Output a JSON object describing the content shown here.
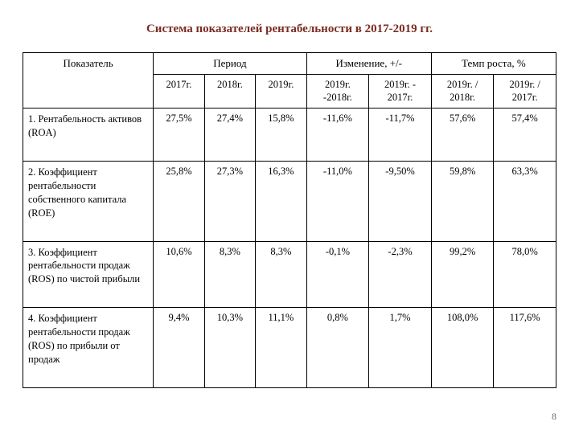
{
  "title": "Система показателей рентабельности в 2017-2019 гг.",
  "columns": {
    "indicator": "Показатель",
    "period": "Период",
    "change": "Изменение, +/-",
    "growth": "Темп роста, %",
    "y2017": "2017г.",
    "y2018": "2018г.",
    "y2019": "2019г.",
    "ch1918": "2019г. -2018г.",
    "ch1917": "2019г. - 2017г.",
    "gr1918": "2019г. / 2018г.",
    "gr1917": "2019г. / 2017г."
  },
  "rows": [
    {
      "indicator": "1. Рентабельность активов (ROA)",
      "y2017": "27,5%",
      "y2018": "27,4%",
      "y2019": "15,8%",
      "ch1918": "-11,6%",
      "ch1917": "-11,7%",
      "gr1918": "57,6%",
      "gr1917": "57,4%"
    },
    {
      "indicator": "2. Коэффициент рентабельности собственного капитала (ROE)",
      "y2017": "25,8%",
      "y2018": "27,3%",
      "y2019": "16,3%",
      "ch1918": "-11,0%",
      "ch1917": "-9,50%",
      "gr1918": "59,8%",
      "gr1917": "63,3%"
    },
    {
      "indicator": "3. Коэффициент рентабельности продаж (ROS) по чистой прибыли",
      "y2017": "10,6%",
      "y2018": "8,3%",
      "y2019": "8,3%",
      "ch1918": "-0,1%",
      "ch1917": "-2,3%",
      "gr1918": "99,2%",
      "gr1917": "78,0%"
    },
    {
      "indicator": "4. Коэффициент рентабельности продаж (ROS) по прибыли от продаж",
      "y2017": "9,4%",
      "y2018": "10,3%",
      "y2019": "11,1%",
      "ch1918": "0,8%",
      "ch1917": "1,7%",
      "gr1918": "108,0%",
      "gr1917": "117,6%"
    }
  ],
  "page_number": "8",
  "style": {
    "title_color": "#7b2b20",
    "border_color": "#000000",
    "font_family": "Times New Roman",
    "title_fontsize": 15,
    "cell_fontsize": 12.5
  }
}
